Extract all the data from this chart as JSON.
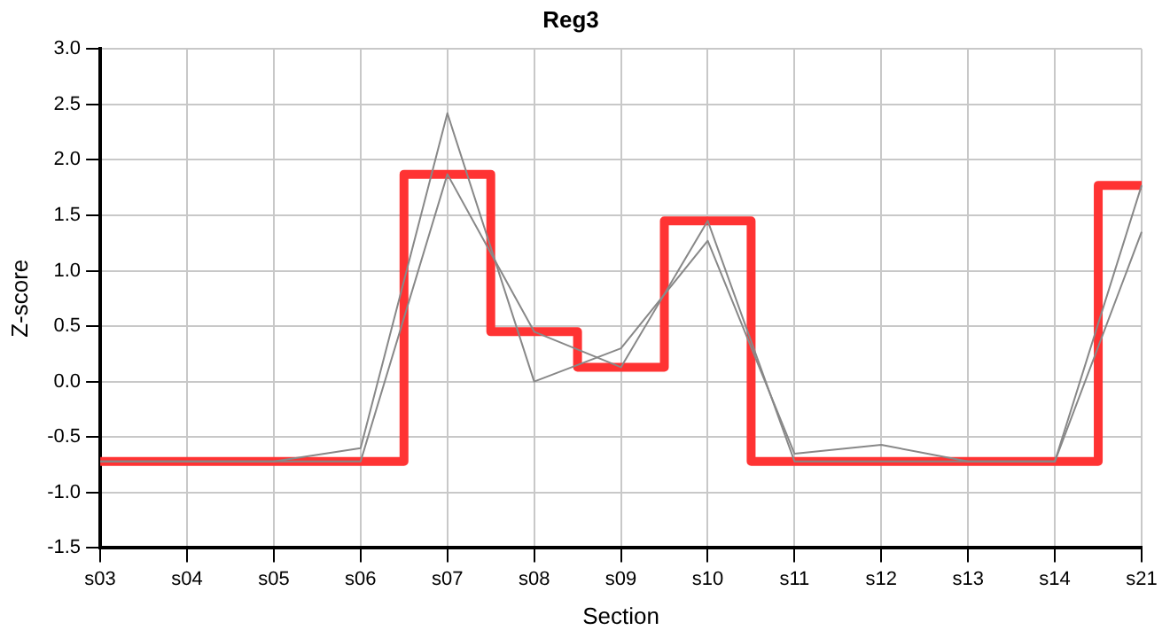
{
  "chart_data": {
    "type": "line",
    "title": "Reg3",
    "xlabel": "Section",
    "ylabel": "Z-score",
    "categories": [
      "s03",
      "s04",
      "s05",
      "s06",
      "s07",
      "s08",
      "s09",
      "s10",
      "s11",
      "s12",
      "s13",
      "s14",
      "s21"
    ],
    "series": [
      {
        "type": "line",
        "color": "#888888",
        "values": [
          -0.72,
          -0.72,
          -0.72,
          -0.6,
          2.42,
          0.0,
          0.3,
          1.27,
          -0.65,
          -0.57,
          -0.72,
          -0.72,
          1.35
        ]
      },
      {
        "type": "line",
        "color": "#888888",
        "values": [
          -0.72,
          -0.72,
          -0.72,
          -0.72,
          1.87,
          0.45,
          0.13,
          1.45,
          -0.72,
          -0.72,
          -0.72,
          -0.72,
          1.77
        ]
      },
      {
        "type": "step",
        "color": "#ff3333",
        "values": [
          -0.72,
          -0.72,
          -0.72,
          -0.72,
          1.87,
          0.45,
          0.13,
          1.45,
          -0.72,
          -0.72,
          -0.72,
          -0.72,
          1.77
        ]
      }
    ],
    "ylim": [
      -1.5,
      3.0
    ],
    "yticks": [
      {
        "value": -1.5,
        "label": "-1.5"
      },
      {
        "value": -1.0,
        "label": "-1.0"
      },
      {
        "value": -0.5,
        "label": "-0.5"
      },
      {
        "value": 0,
        "label": "0.0"
      },
      {
        "value": 0.5,
        "label": "0.5"
      },
      {
        "value": 1.0,
        "label": "1.0"
      },
      {
        "value": 1.5,
        "label": "1.5"
      },
      {
        "value": 2.0,
        "label": "2.0"
      },
      {
        "value": 2.5,
        "label": "2.5"
      },
      {
        "value": 3.0,
        "label": "3.0"
      }
    ],
    "grid": true,
    "legend": false,
    "marker": "none",
    "line_style": "solid"
  }
}
